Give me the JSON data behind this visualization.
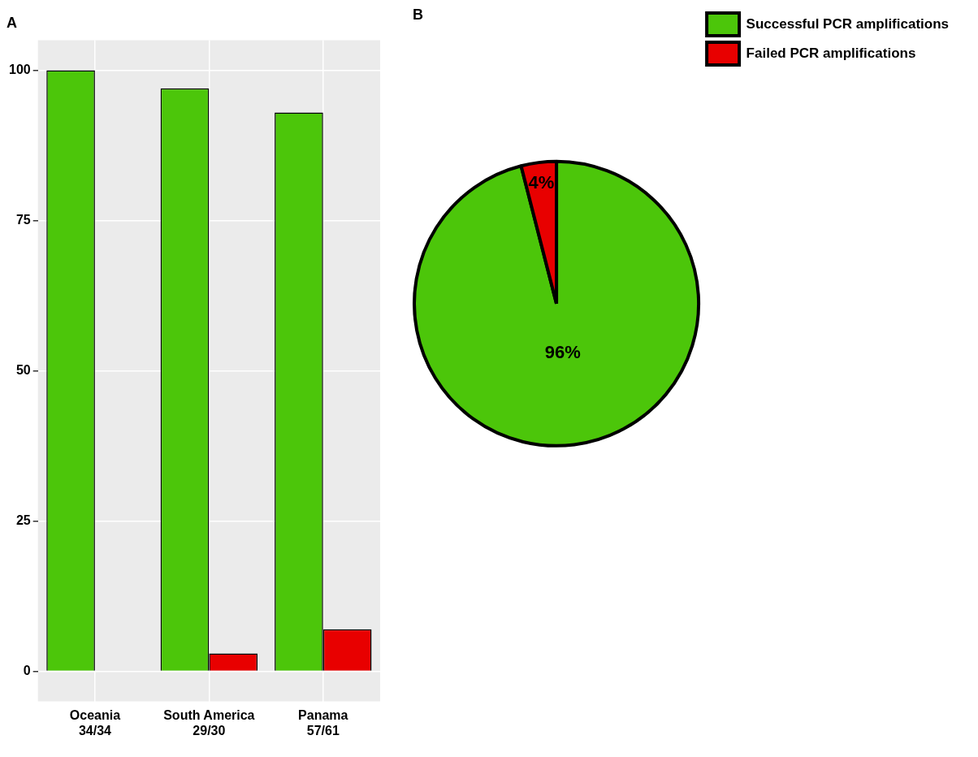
{
  "chart_data": [
    {
      "type": "bar",
      "title": "A",
      "categories": [
        "Oceania\n34/34",
        "South America\n29/30",
        "Panama\n57/61"
      ],
      "series": [
        {
          "color": "#4cc60a",
          "values": [
            100,
            97,
            93
          ]
        },
        {
          "color": "#e80000",
          "values": [
            0,
            3,
            7
          ]
        }
      ],
      "ylim": [
        -5,
        105
      ],
      "yticks": [
        0,
        25,
        50,
        75,
        100
      ],
      "grid": true,
      "legend": false
    },
    {
      "type": "pie",
      "title": "B",
      "categories": [
        "Successful PCR amplifications",
        "Failed PCR amplifications"
      ],
      "values": [
        96,
        4
      ],
      "colors": [
        "#4cc60a",
        "#e80000"
      ],
      "value_labels": [
        "96%",
        "4%"
      ],
      "legend": "top right"
    }
  ]
}
